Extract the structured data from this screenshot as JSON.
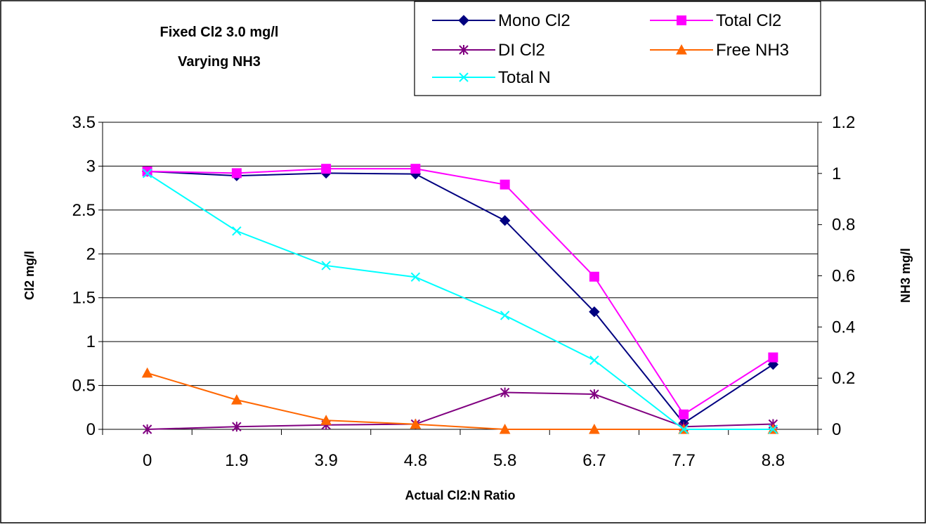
{
  "chart_data": {
    "type": "line",
    "title_lines": [
      "Fixed Cl2 3.0 mg/l",
      "Varying NH3"
    ],
    "xlabel": "Actual Cl2:N Ratio",
    "ylabel_left": "Cl2 mg/l",
    "ylabel_right": "NH3 mg/l",
    "categories": [
      "0",
      "1.9",
      "3.9",
      "4.8",
      "5.8",
      "6.7",
      "7.7",
      "8.8"
    ],
    "ylim_left": [
      0,
      3.5
    ],
    "ylim_right": [
      0,
      1.2
    ],
    "yticks_left": [
      "0",
      "0.5",
      "1",
      "1.5",
      "2",
      "2.5",
      "3",
      "3.5"
    ],
    "yticks_right": [
      "0",
      "0.2",
      "0.4",
      "0.6",
      "0.8",
      "1",
      "1.2"
    ],
    "legend_position": "top-right",
    "grid": "horizontal",
    "series": [
      {
        "name": "Mono Cl2",
        "axis": "left",
        "color": "#000080",
        "marker": "diamond",
        "values": [
          2.94,
          2.89,
          2.92,
          2.91,
          2.38,
          1.34,
          0.07,
          0.74
        ]
      },
      {
        "name": "Total Cl2",
        "axis": "left",
        "color": "#FF00FF",
        "marker": "square",
        "values": [
          2.94,
          2.92,
          2.97,
          2.97,
          2.79,
          1.74,
          0.17,
          0.82
        ]
      },
      {
        "name": "DI Cl2",
        "axis": "left",
        "color": "#800080",
        "marker": "star",
        "values": [
          0.0,
          0.03,
          0.05,
          0.06,
          0.42,
          0.4,
          0.03,
          0.06
        ]
      },
      {
        "name": "Free NH3",
        "axis": "right",
        "color": "#FF6600",
        "marker": "triangle",
        "values": [
          0.22,
          0.115,
          0.035,
          0.02,
          0.0,
          0.0,
          0.0,
          0.0
        ]
      },
      {
        "name": "Total N",
        "axis": "right",
        "color": "#00FFFF",
        "marker": "x",
        "values": [
          1.0,
          0.775,
          0.64,
          0.595,
          0.445,
          0.27,
          0.0,
          0.0
        ]
      }
    ]
  }
}
